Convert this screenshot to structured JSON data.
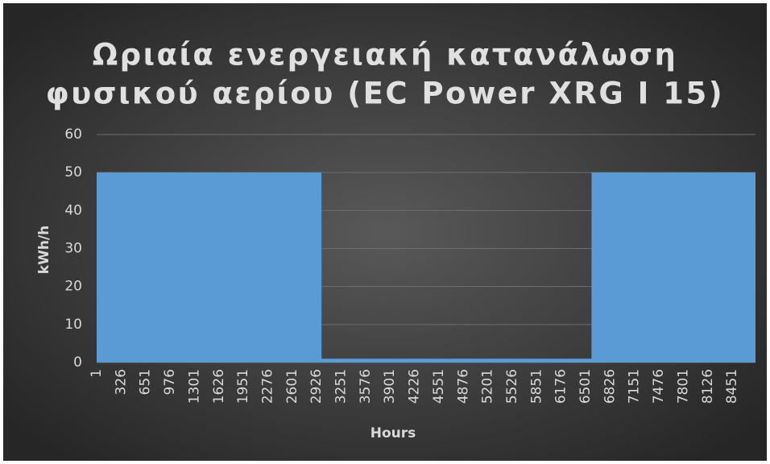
{
  "chart_data": {
    "type": "area",
    "title": [
      "Ωριαία ενεργειακή κατανάλωση",
      "φυσικού αερίου (EC Power XRG I 15)"
    ],
    "xlabel": "Hours",
    "ylabel": "kWh/h",
    "x": [
      1,
      2990,
      2991,
      6580,
      6581,
      8760
    ],
    "values": [
      50,
      50,
      1,
      1,
      50,
      50
    ],
    "color": "#5b9bd5",
    "xlim": [
      1,
      8760
    ],
    "xticks": [
      1,
      326,
      651,
      976,
      1301,
      1626,
      1951,
      2276,
      2601,
      2926,
      3251,
      3576,
      3901,
      4226,
      4551,
      4876,
      5201,
      5526,
      5851,
      6176,
      6501,
      6826,
      7151,
      7476,
      7801,
      8126,
      8451
    ],
    "ylim": [
      0,
      60
    ],
    "yticks": [
      0,
      10,
      20,
      30,
      40,
      50,
      60
    ],
    "grid": true
  }
}
